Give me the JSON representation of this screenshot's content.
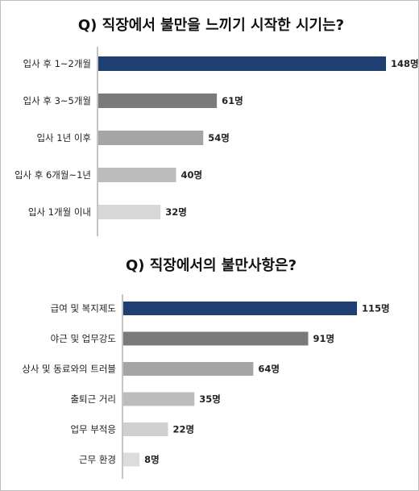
{
  "chart_data": [
    {
      "type": "bar",
      "orientation": "horizontal",
      "title": "Q) 직장에서 불만을 느끼기 시작한 시기는?",
      "categories": [
        "입사 후 1~2개월",
        "입사 후 3~5개월",
        "입사 1년 이후",
        "입사 후 6개월~1년",
        "입사 1개월 이내"
      ],
      "values": [
        148,
        61,
        54,
        40,
        32
      ],
      "value_labels": [
        "148명",
        "61명",
        "54명",
        "40명",
        "32명"
      ],
      "unit": "명",
      "bar_colors": [
        "#1f3f73",
        "#7a7a7a",
        "#a5a5a5",
        "#bcbcbc",
        "#d7d7d7"
      ],
      "highlight_label_color": "#e0191e",
      "xlim": [
        0,
        148
      ],
      "grid": false,
      "xaxis_visible": false
    },
    {
      "type": "bar",
      "orientation": "horizontal",
      "title": "Q) 직장에서의 불만사항은?",
      "categories": [
        "급여 및 복지제도",
        "야근 및 업무강도",
        "상사 및 동료와의 트러블",
        "출퇴근 거리",
        "업무 부적응",
        "근무 환경"
      ],
      "values": [
        115,
        91,
        64,
        35,
        22,
        8
      ],
      "value_labels": [
        "115명",
        "91명",
        "64명",
        "35명",
        "22명",
        "8명"
      ],
      "unit": "명",
      "bar_colors": [
        "#1f3f73",
        "#7a7a7a",
        "#a5a5a5",
        "#bcbcbc",
        "#d0d0d0",
        "#dcdcdc"
      ],
      "highlight_label_color": "#e0191e",
      "xlim": [
        0,
        115
      ],
      "grid": false,
      "xaxis_visible": false
    }
  ]
}
